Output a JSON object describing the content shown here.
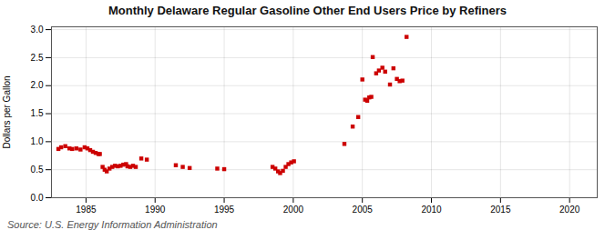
{
  "chart_data": {
    "type": "scatter",
    "title": "Monthly Delaware Regular Gasoline Other End Users Price by Refiners",
    "ylabel": "Dollars per Gallon",
    "annotation": "Source: U.S. Energy Information Administration",
    "color": "#cc0000",
    "marker": "square",
    "grid": true,
    "xlim": [
      1982.5,
      2022
    ],
    "ylim": [
      0.0,
      3.05
    ],
    "xticks": [
      1985,
      1990,
      1995,
      2000,
      2005,
      2010,
      2015,
      2020
    ],
    "yticks": [
      {
        "value": 0.0,
        "label": "0.0"
      },
      0.5,
      {
        "value": 1.0,
        "label": "1.0"
      },
      1.5,
      {
        "value": 2.0,
        "label": "2.0"
      },
      2.5,
      {
        "value": 3.0,
        "label": "3.0"
      }
    ],
    "x": [
      1983.0,
      1983.2,
      1983.5,
      1983.8,
      1984.0,
      1984.3,
      1984.6,
      1984.9,
      1985.1,
      1985.3,
      1985.5,
      1985.7,
      1985.9,
      1986.0,
      1986.2,
      1986.35,
      1986.5,
      1986.7,
      1986.9,
      1987.1,
      1987.3,
      1987.5,
      1987.7,
      1987.9,
      1988.0,
      1988.2,
      1988.4,
      1988.6,
      1989.0,
      1989.4,
      1991.5,
      1992.0,
      1992.5,
      1994.5,
      1995.0,
      1998.5,
      1998.7,
      1998.9,
      1999.05,
      1999.25,
      1999.45,
      1999.65,
      1999.85,
      2000.05,
      2003.7,
      2004.3,
      2004.7,
      2005.0,
      2005.2,
      2005.35,
      2005.5,
      2005.65,
      2005.75,
      2006.0,
      2006.2,
      2006.45,
      2006.65,
      2007.0,
      2007.25,
      2007.5,
      2007.7,
      2007.9,
      2008.2
    ],
    "values": [
      0.87,
      0.9,
      0.92,
      0.88,
      0.87,
      0.88,
      0.86,
      0.9,
      0.88,
      0.85,
      0.82,
      0.8,
      0.78,
      0.78,
      0.55,
      0.5,
      0.47,
      0.52,
      0.55,
      0.57,
      0.56,
      0.57,
      0.59,
      0.6,
      0.56,
      0.55,
      0.57,
      0.55,
      0.7,
      0.68,
      0.58,
      0.55,
      0.53,
      0.52,
      0.51,
      0.55,
      0.52,
      0.47,
      0.44,
      0.48,
      0.55,
      0.6,
      0.63,
      0.65,
      0.96,
      1.27,
      1.44,
      2.11,
      1.75,
      1.73,
      1.79,
      1.8,
      2.51,
      2.22,
      2.27,
      2.32,
      2.25,
      2.02,
      2.31,
      2.12,
      2.08,
      2.09,
      2.87
    ]
  }
}
